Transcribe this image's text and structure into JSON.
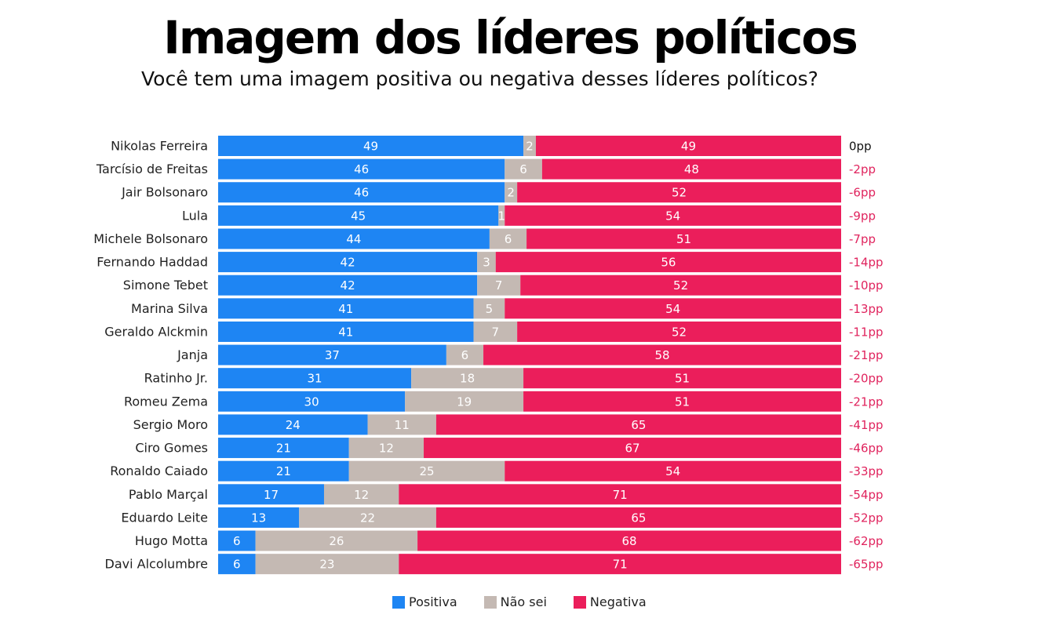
{
  "title": "Imagem dos líderes políticos",
  "subtitle": "Você tem uma imagem positiva ou negativa desses líderes políticos?",
  "chart_data": {
    "type": "bar",
    "orientation": "horizontal",
    "stacked": true,
    "xlim": [
      0,
      100
    ],
    "grid": false,
    "legend_placement": "bottom",
    "categories": [
      "Nikolas Ferreira",
      "Tarcísio de Freitas",
      "Jair Bolsonaro",
      "Lula",
      "Michele Bolsonaro",
      "Fernando Haddad",
      "Simone Tebet",
      "Marina Silva",
      "Geraldo Alckmin",
      "Janja",
      "Ratinho Jr.",
      "Romeu Zema",
      "Sergio Moro",
      "Ciro Gomes",
      "Ronaldo Caiado",
      "Pablo Marçal",
      "Eduardo Leite",
      "Hugo Motta",
      "Davi Alcolumbre"
    ],
    "series": [
      {
        "name": "Positiva",
        "color": "#1E85F3",
        "values": [
          49,
          46,
          46,
          45,
          44,
          42,
          42,
          41,
          41,
          37,
          31,
          30,
          24,
          21,
          21,
          17,
          13,
          6,
          6
        ]
      },
      {
        "name": "Não sei",
        "color": "#C4B9B3",
        "values": [
          2,
          6,
          2,
          1,
          6,
          3,
          7,
          5,
          7,
          6,
          18,
          19,
          11,
          12,
          25,
          12,
          22,
          26,
          23
        ]
      },
      {
        "name": "Negativa",
        "color": "#EB1E5B",
        "values": [
          49,
          48,
          52,
          54,
          51,
          56,
          52,
          54,
          52,
          58,
          51,
          51,
          65,
          67,
          54,
          71,
          65,
          68,
          71
        ]
      }
    ],
    "net_labels": [
      "0pp",
      "-2pp",
      "-6pp",
      "-9pp",
      "-7pp",
      "-14pp",
      "-10pp",
      "-13pp",
      "-11pp",
      "-21pp",
      "-20pp",
      "-21pp",
      "-41pp",
      "-46pp",
      "-33pp",
      "-54pp",
      "-52pp",
      "-62pp",
      "-65pp"
    ],
    "net_colors": {
      "zero": "#111111",
      "negative": "#E0245E"
    }
  }
}
